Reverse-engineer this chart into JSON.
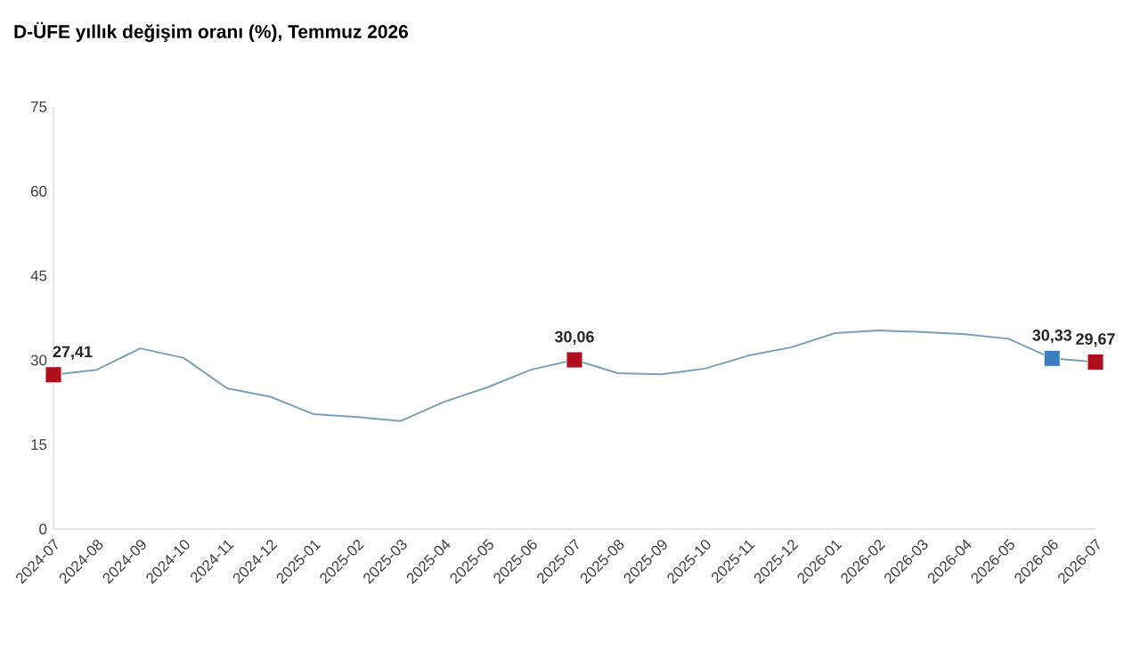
{
  "chart_data": {
    "type": "line",
    "title": "D-ÜFE yıllık değişim oranı (%), Temmuz 2026",
    "categories": [
      "2024-07",
      "2024-08",
      "2024-09",
      "2024-10",
      "2024-11",
      "2024-12",
      "2025-01",
      "2025-02",
      "2025-03",
      "2025-04",
      "2025-05",
      "2025-06",
      "2025-07",
      "2025-08",
      "2025-09",
      "2025-10",
      "2025-11",
      "2025-12",
      "2026-01",
      "2026-02",
      "2026-03",
      "2026-04",
      "2026-05",
      "2026-06",
      "2026-07"
    ],
    "series": [
      {
        "color": "#7a9fb8",
        "marker": "none",
        "values": [
          27.41,
          28.3,
          32.1,
          30.4,
          25.0,
          23.5,
          20.4,
          19.9,
          19.2,
          22.6,
          25.2,
          28.3,
          30.06,
          27.7,
          27.5,
          28.5,
          30.8,
          32.3,
          34.8,
          35.3,
          35.0,
          34.6,
          33.8,
          30.33,
          29.67
        ]
      },
      {
        "type": "scatter",
        "marker": "square",
        "colors": [
          "#b0101e",
          null,
          null,
          null,
          null,
          null,
          null,
          null,
          null,
          null,
          null,
          null,
          "#b0101e",
          null,
          null,
          null,
          null,
          null,
          null,
          null,
          null,
          null,
          null,
          "#3a7ebf",
          "#b0101e"
        ],
        "values": [
          27.41,
          null,
          null,
          null,
          null,
          null,
          null,
          null,
          null,
          null,
          null,
          null,
          30.06,
          null,
          null,
          null,
          null,
          null,
          null,
          null,
          null,
          null,
          null,
          30.33,
          29.67
        ],
        "value_labels": [
          "27,41",
          null,
          null,
          null,
          null,
          null,
          null,
          null,
          null,
          null,
          null,
          null,
          "30,06",
          null,
          null,
          null,
          null,
          null,
          null,
          null,
          null,
          null,
          null,
          "30,33",
          "29,67"
        ]
      }
    ],
    "ylim": [
      0,
      75
    ],
    "yticks": [
      0,
      15,
      30,
      45,
      60,
      75
    ]
  }
}
